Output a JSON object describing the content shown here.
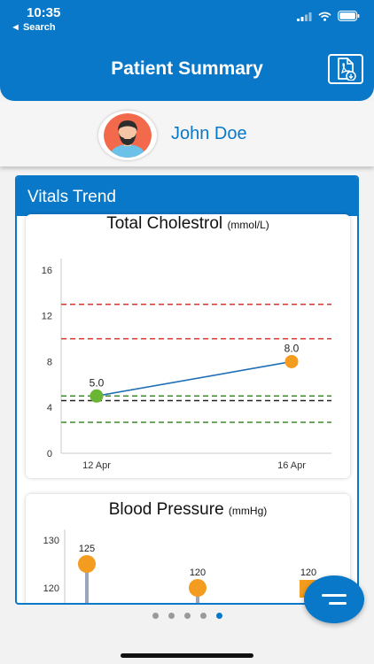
{
  "status_bar": {
    "time": "10:35",
    "back_label": "◄ Search"
  },
  "header": {
    "title": "Patient Summary",
    "pdf_icon": "pdf-download-icon"
  },
  "patient": {
    "name": "John Doe"
  },
  "vitals": {
    "title": "Vitals Trend"
  },
  "chart_data": [
    {
      "type": "line",
      "title": "Total Cholestrol",
      "unit": "(mmol/L)",
      "x": [
        "12 Apr",
        "16 Apr"
      ],
      "series": [
        {
          "values": [
            5.0,
            8.0
          ]
        }
      ],
      "data_labels": [
        "5.0",
        "8.0"
      ],
      "point_colors": [
        "#6bb534",
        "#f39c1f"
      ],
      "ylim": [
        0,
        17
      ],
      "yticks": [
        0,
        4,
        8,
        12,
        16
      ],
      "reference_lines": [
        {
          "value": 13,
          "color": "#d9342b"
        },
        {
          "value": 10,
          "color": "#d9342b"
        },
        {
          "value": 5.0,
          "color": "#3a8a2a"
        },
        {
          "value": 4.6,
          "color": "#222222"
        },
        {
          "value": 2.7,
          "color": "#3a8a2a"
        }
      ],
      "grid": false
    },
    {
      "type": "scatter",
      "title": "Blood Pressure",
      "unit": "(mmHg)",
      "yticks": [
        120,
        130
      ],
      "ylim": [
        110,
        135
      ],
      "values": [
        125,
        120,
        120
      ],
      "data_labels": [
        "125",
        "120",
        "120"
      ],
      "marker_shapes": [
        "circle",
        "circle",
        "square"
      ],
      "marker_color": "#f39c1f",
      "stem_color": "#9aa7bd"
    }
  ],
  "pagination": {
    "count": 5,
    "active_index": 4
  },
  "colors": {
    "primary": "#0a78c8",
    "marker_orange": "#f39c1f",
    "marker_green": "#6bb534"
  }
}
